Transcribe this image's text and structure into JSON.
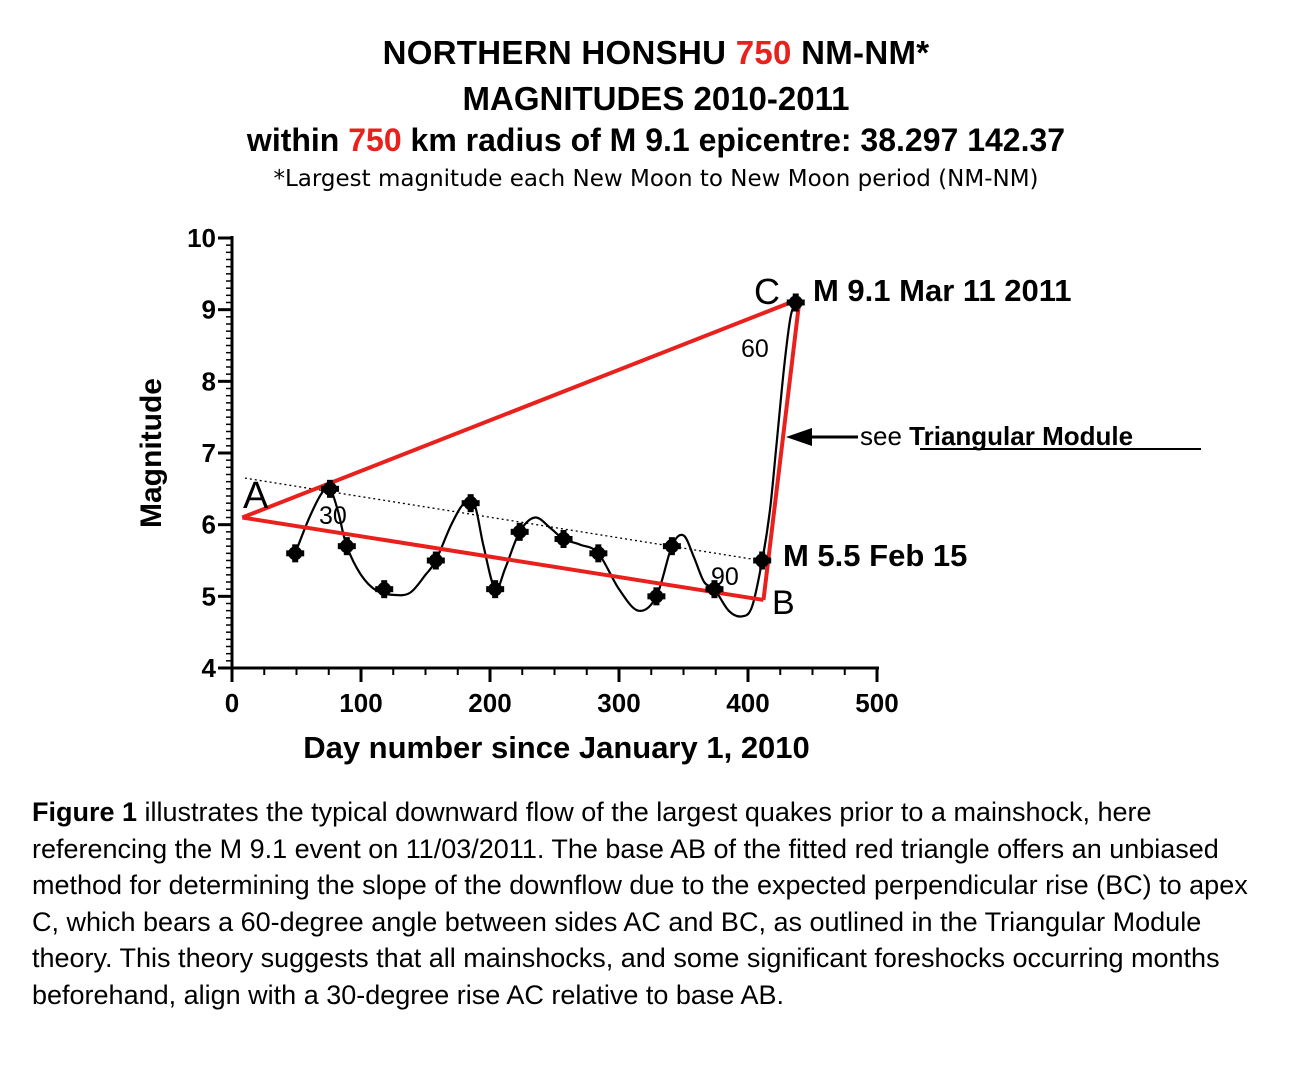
{
  "title": {
    "line1_pre": "NORTHERN HONSHU ",
    "line1_red": "750",
    "line1_post": " NM-NM*",
    "line2": "MAGNITUDES 2010-2011",
    "line3_pre": "within ",
    "line3_red": "750",
    "line3_post": " km radius of M 9.1 epicentre: 38.297 142.37",
    "note": "*Largest magnitude each New Moon to New Moon period (NM-NM)"
  },
  "colors": {
    "red": "#e8211d",
    "black": "#000000"
  },
  "chart_data": {
    "type": "scatter",
    "xlabel": "Day number since January 1, 2010",
    "ylabel": "Magnitude",
    "xlim": [
      0,
      500
    ],
    "ylim": [
      4,
      10
    ],
    "x_ticks": [
      "0",
      "100",
      "200",
      "300",
      "400",
      "500"
    ],
    "y_ticks": [
      "4",
      "5",
      "6",
      "7",
      "8",
      "9",
      "10"
    ],
    "series": [
      {
        "values": [
          {
            "x": 49,
            "y": 5.6
          },
          {
            "x": 76,
            "y": 6.5
          },
          {
            "x": 89,
            "y": 5.7
          },
          {
            "x": 118,
            "y": 5.1
          },
          {
            "x": 158,
            "y": 5.5
          },
          {
            "x": 185,
            "y": 6.3
          },
          {
            "x": 204,
            "y": 5.1
          },
          {
            "x": 223,
            "y": 5.9
          },
          {
            "x": 257,
            "y": 5.8
          },
          {
            "x": 284,
            "y": 5.6
          },
          {
            "x": 329,
            "y": 5.0
          },
          {
            "x": 341,
            "y": 5.7
          },
          {
            "x": 374,
            "y": 5.1
          },
          {
            "x": 411,
            "y": 5.5
          },
          {
            "x": 437,
            "y": 9.1
          }
        ]
      }
    ],
    "smooth_curve": [
      [
        49,
        5.6
      ],
      [
        60,
        6.1
      ],
      [
        70,
        6.45
      ],
      [
        76,
        6.5
      ],
      [
        82,
        6.2
      ],
      [
        89,
        5.7
      ],
      [
        100,
        5.3
      ],
      [
        112,
        5.08
      ],
      [
        125,
        5.02
      ],
      [
        138,
        5.05
      ],
      [
        150,
        5.3
      ],
      [
        158,
        5.5
      ],
      [
        170,
        6.0
      ],
      [
        180,
        6.3
      ],
      [
        188,
        6.28
      ],
      [
        195,
        5.7
      ],
      [
        204,
        5.1
      ],
      [
        212,
        5.4
      ],
      [
        223,
        5.9
      ],
      [
        235,
        6.1
      ],
      [
        247,
        5.95
      ],
      [
        257,
        5.8
      ],
      [
        270,
        5.72
      ],
      [
        284,
        5.6
      ],
      [
        300,
        5.1
      ],
      [
        315,
        4.8
      ],
      [
        329,
        5.0
      ],
      [
        341,
        5.7
      ],
      [
        350,
        5.85
      ],
      [
        358,
        5.55
      ],
      [
        366,
        5.2
      ],
      [
        374,
        5.1
      ],
      [
        385,
        4.8
      ],
      [
        395,
        4.72
      ],
      [
        403,
        4.85
      ],
      [
        411,
        5.5
      ],
      [
        417,
        6.2
      ],
      [
        422,
        7.1
      ],
      [
        428,
        8.2
      ],
      [
        433,
        8.9
      ],
      [
        437,
        9.1
      ]
    ],
    "trend_line": {
      "x": [
        10,
        410
      ],
      "y": [
        6.65,
        5.5
      ]
    },
    "triangle": {
      "A": {
        "x": 8,
        "y": 6.1
      },
      "B": {
        "x": 412,
        "y": 4.95
      },
      "C": {
        "x": 440,
        "y": 9.15
      }
    },
    "annotations": {
      "label_A": "A",
      "label_B": "B",
      "label_C": "C",
      "angle_A": "30",
      "angle_B": "90",
      "angle_C": "60",
      "event_C": "M 9.1 Mar 11 2011",
      "event_B": "M 5.5 Feb 15",
      "arrow_text": "see ",
      "arrow_link": "Triangular Module"
    }
  },
  "caption": {
    "bold": "Figure 1",
    "text": " illustrates the typical downward flow of the largest quakes prior to a mainshock, here referencing the M 9.1 event on 11/03/2011. The base AB of the fitted red triangle offers an unbiased method for determining the slope of the downflow due to the expected perpendicular rise (BC) to apex C, which bears a 60-degree angle between sides AC and BC, as outlined in the Triangular Module theory. This theory suggests that all mainshocks, and some significant foreshocks occurring months beforehand, align with a 30-degree rise AC relative to base AB."
  }
}
